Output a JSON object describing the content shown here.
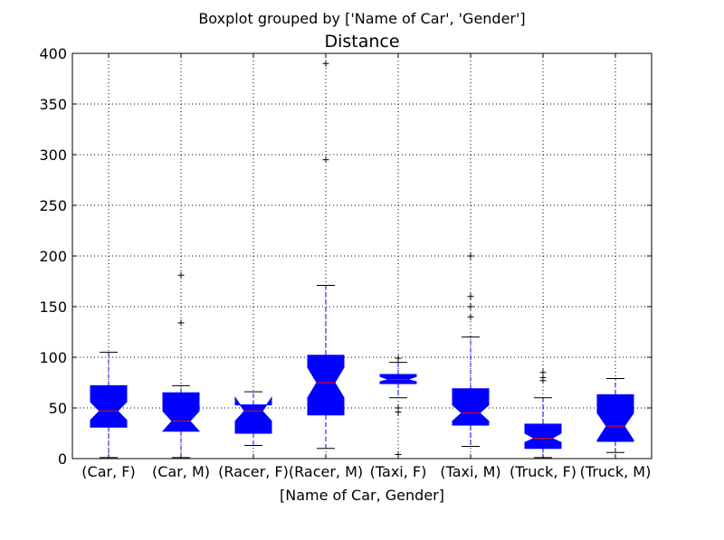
{
  "suptitle": "Boxplot grouped by ['Name of Car', 'Gender']",
  "colors": {
    "box_fill": "#0000ff",
    "median": "#ff0000",
    "whisker": "#0000ff",
    "cap": "#000000",
    "grid": "#000000"
  },
  "chart_data": {
    "type": "boxplot",
    "title": "Distance",
    "xlabel": "[Name of Car, Gender]",
    "ylabel": "",
    "ylim": [
      0,
      400
    ],
    "yticks": [
      0,
      50,
      100,
      150,
      200,
      250,
      300,
      350,
      400
    ],
    "grid": true,
    "notched": true,
    "categories": [
      "(Car, F)",
      "(Car, M)",
      "(Racer, F)",
      "(Racer, M)",
      "(Taxi, F)",
      "(Taxi, M)",
      "(Truck, F)",
      "(Truck, M)"
    ],
    "boxes": [
      {
        "whislo": 1,
        "q1": 31,
        "med": 47,
        "q3": 72,
        "whishi": 105,
        "notch_lo": 38,
        "notch_hi": 56,
        "fliers": []
      },
      {
        "whislo": 1,
        "q1": 27,
        "med": 37,
        "q3": 65,
        "whishi": 72,
        "notch_lo": 27,
        "notch_hi": 47,
        "fliers": [
          134,
          181
        ]
      },
      {
        "whislo": 13,
        "q1": 25,
        "med": 47,
        "q3": 53,
        "whishi": 66,
        "notch_lo": 37,
        "notch_hi": 60,
        "fliers": []
      },
      {
        "whislo": 10,
        "q1": 43,
        "med": 75,
        "q3": 102,
        "whishi": 171,
        "notch_lo": 60,
        "notch_hi": 90,
        "fliers": [
          295,
          390
        ]
      },
      {
        "whislo": 60,
        "q1": 74,
        "med": 78,
        "q3": 83,
        "whishi": 95,
        "notch_lo": 76,
        "notch_hi": 81,
        "fliers": [
          4,
          46,
          50,
          99
        ]
      },
      {
        "whislo": 12,
        "q1": 33,
        "med": 45,
        "q3": 69,
        "whishi": 120,
        "notch_lo": 37,
        "notch_hi": 53,
        "fliers": [
          140,
          150,
          160,
          200
        ]
      },
      {
        "whislo": 1,
        "q1": 10,
        "med": 20,
        "q3": 34,
        "whishi": 60,
        "notch_lo": 16,
        "notch_hi": 25,
        "fliers": [
          77,
          80,
          85
        ]
      },
      {
        "whislo": 6,
        "q1": 17,
        "med": 32,
        "q3": 63,
        "whishi": 79,
        "notch_lo": 18,
        "notch_hi": 45,
        "fliers": []
      }
    ]
  }
}
